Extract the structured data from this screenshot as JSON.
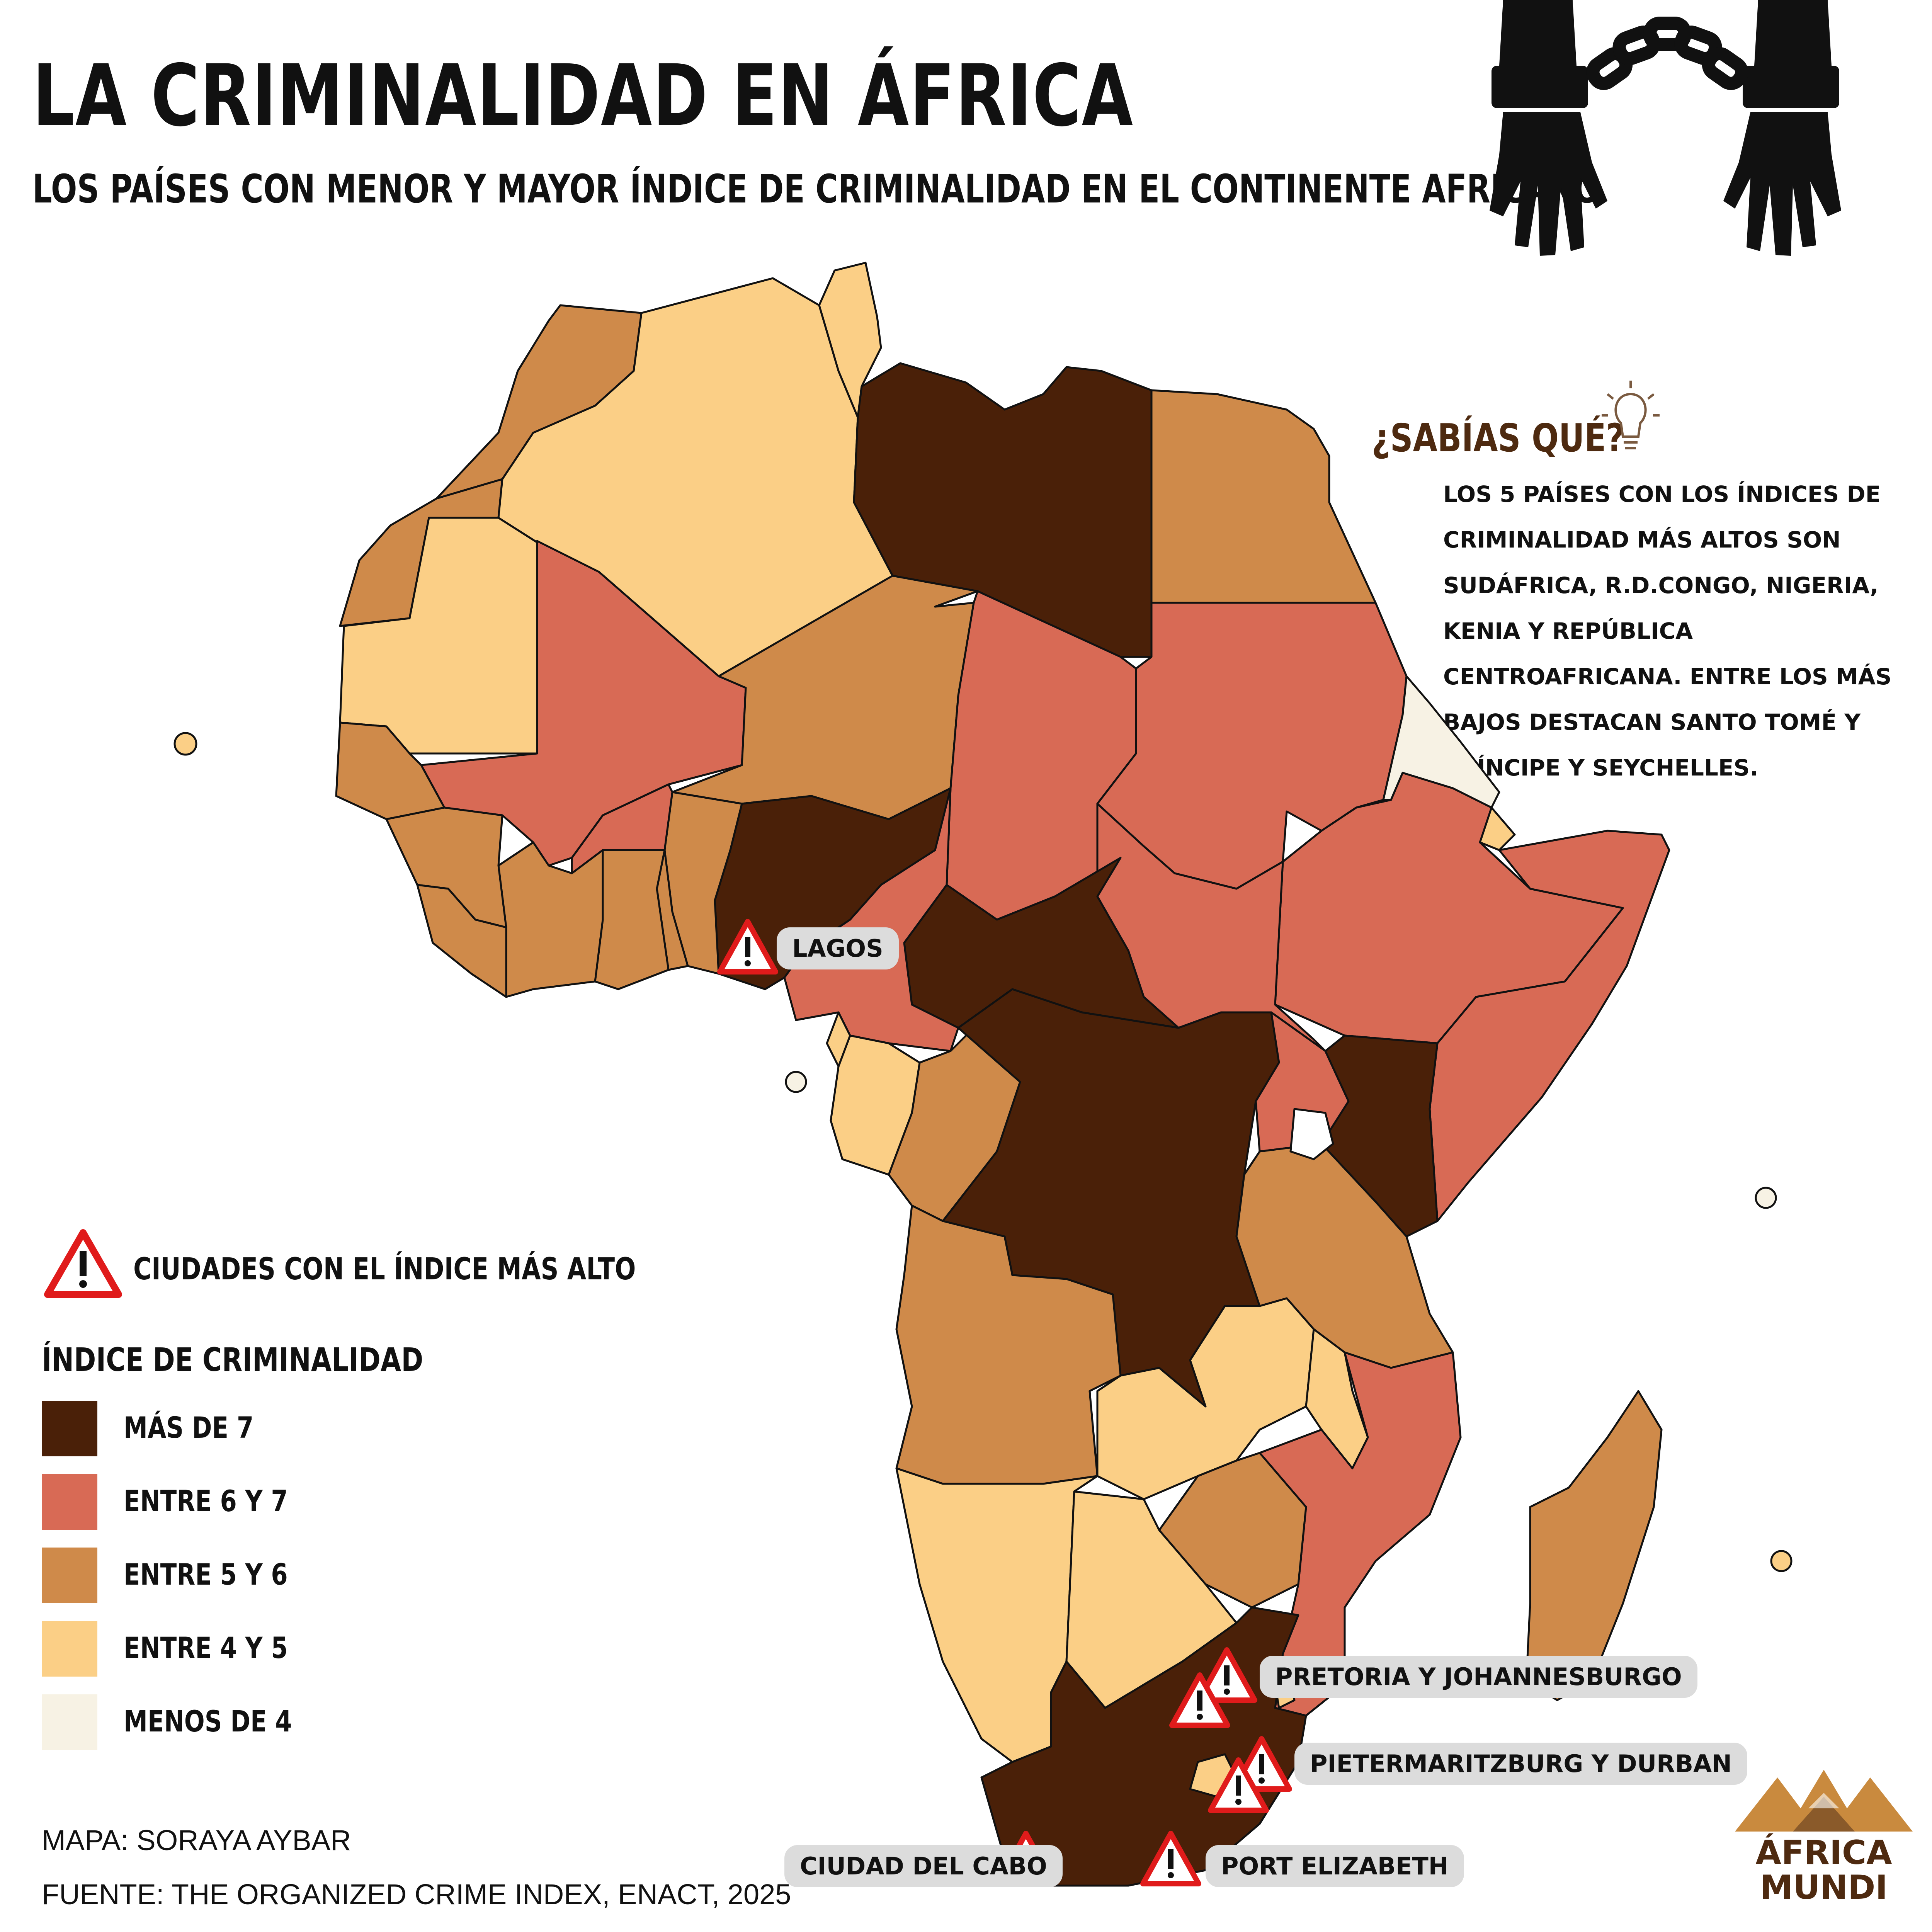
{
  "title": "LA CRIMINALIDAD EN ÁFRICA",
  "subtitle": "LOS PAÍSES CON MENOR Y MAYOR ÍNDICE DE CRIMINALIDAD EN EL CONTINENTE AFRICANO",
  "sabias": {
    "heading": "¿SABÍAS QUÉ?",
    "text": "LOS 5 PAÍSES CON LOS ÍNDICES DE CRIMINALIDAD MÁS ALTOS SON SUDÁFRICA, R.D.CONGO, NIGERIA, KENIA Y REPÚBLICA CENTROAFRICANA. ENTRE LOS MÁS BAJOS DESTACAN SANTO TOMÉ Y PRÍNCIPE Y SEYCHELLES.",
    "icon": "lightbulb-icon"
  },
  "header_icon": "handcuffed-hands-icon",
  "cities_legend": "CIUDADES CON EL ÍNDICE MÁS ALTO",
  "legend": {
    "title": "ÍNDICE DE CRIMINALIDAD",
    "items": [
      {
        "label": "MÁS DE 7",
        "color": "#4a2008"
      },
      {
        "label": "ENTRE 6 Y 7",
        "color": "#d86a55"
      },
      {
        "label": "ENTRE 5 Y 6",
        "color": "#cf8a4a"
      },
      {
        "label": "ENTRE 4 Y 5",
        "color": "#fbcf86"
      },
      {
        "label": "MENOS DE 4",
        "color": "#f7f2e4"
      }
    ]
  },
  "cities": [
    {
      "name": "LAGOS"
    },
    {
      "name": "PRETORIA Y JOHANNESBURGO"
    },
    {
      "name": "PIETERMARITZBURG Y DURBAN"
    },
    {
      "name": "CIUDAD DEL CABO"
    },
    {
      "name": "PORT ELIZABETH"
    }
  ],
  "credits": {
    "map": "MAPA: SORAYA AYBAR",
    "source": "FUENTE: THE ORGANIZED CRIME INDEX, ENACT, 2025"
  },
  "logo": {
    "line1": "ÁFRICA",
    "line2": "MUNDI"
  },
  "colors": {
    "mas7": "#4a2008",
    "e67": "#d86a55",
    "e56": "#cf8a4a",
    "e45": "#fbcf86",
    "m4": "#f7f2e4",
    "warning_red": "#e01b1b",
    "label_bg": "#dcdcdc",
    "brown_text": "#4e2a10"
  }
}
